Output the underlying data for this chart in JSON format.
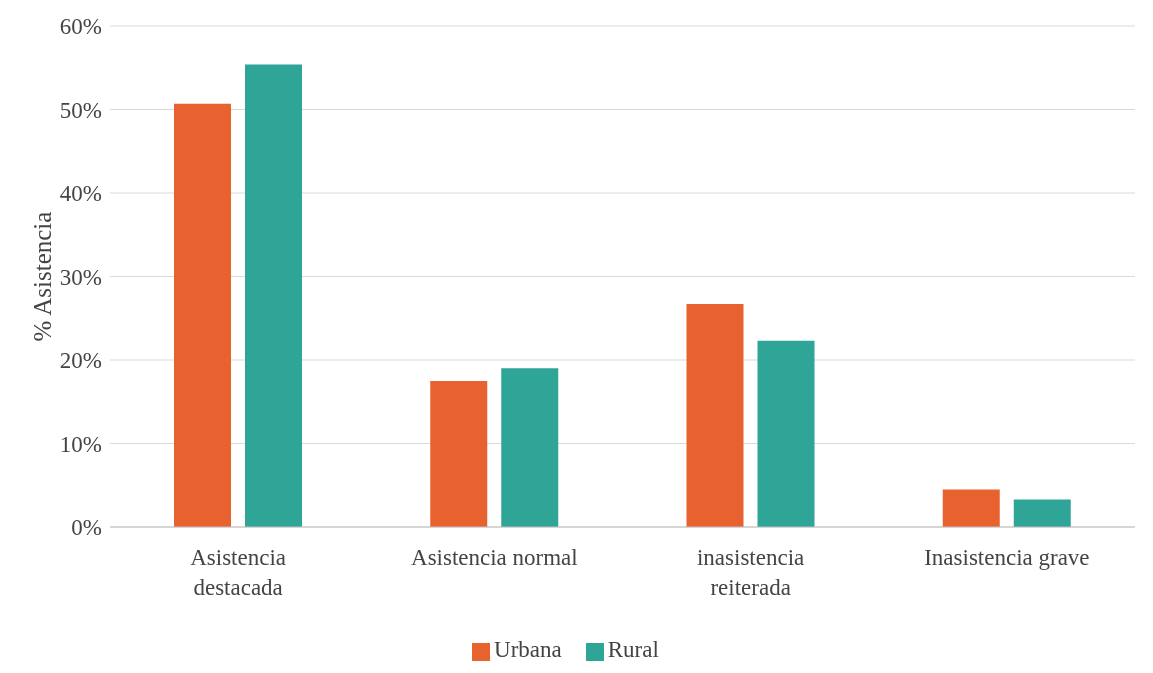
{
  "chart_data": {
    "type": "bar",
    "ylabel": "% Asistencia",
    "categories": [
      "Asistencia destacada",
      "Asistencia normal",
      "inasistencia reiterada",
      "Inasistencia grave"
    ],
    "series": [
      {
        "name": "Urbana",
        "color": "#e8622f",
        "values": [
          50.7,
          17.5,
          26.7,
          4.5
        ]
      },
      {
        "name": "Rural",
        "color": "#2fa597",
        "values": [
          55.4,
          19.0,
          22.3,
          3.3
        ]
      }
    ],
    "ylim": [
      0,
      60
    ],
    "yticks": [
      {
        "value": 0,
        "label": "0%"
      },
      {
        "value": 10,
        "label": "10%"
      },
      {
        "value": 20,
        "label": "20%"
      },
      {
        "value": 30,
        "label": "30%"
      },
      {
        "value": 40,
        "label": "40%"
      },
      {
        "value": 50,
        "label": "50%"
      },
      {
        "value": 60,
        "label": "60%"
      }
    ],
    "grid": "y",
    "legend": "bottom"
  }
}
